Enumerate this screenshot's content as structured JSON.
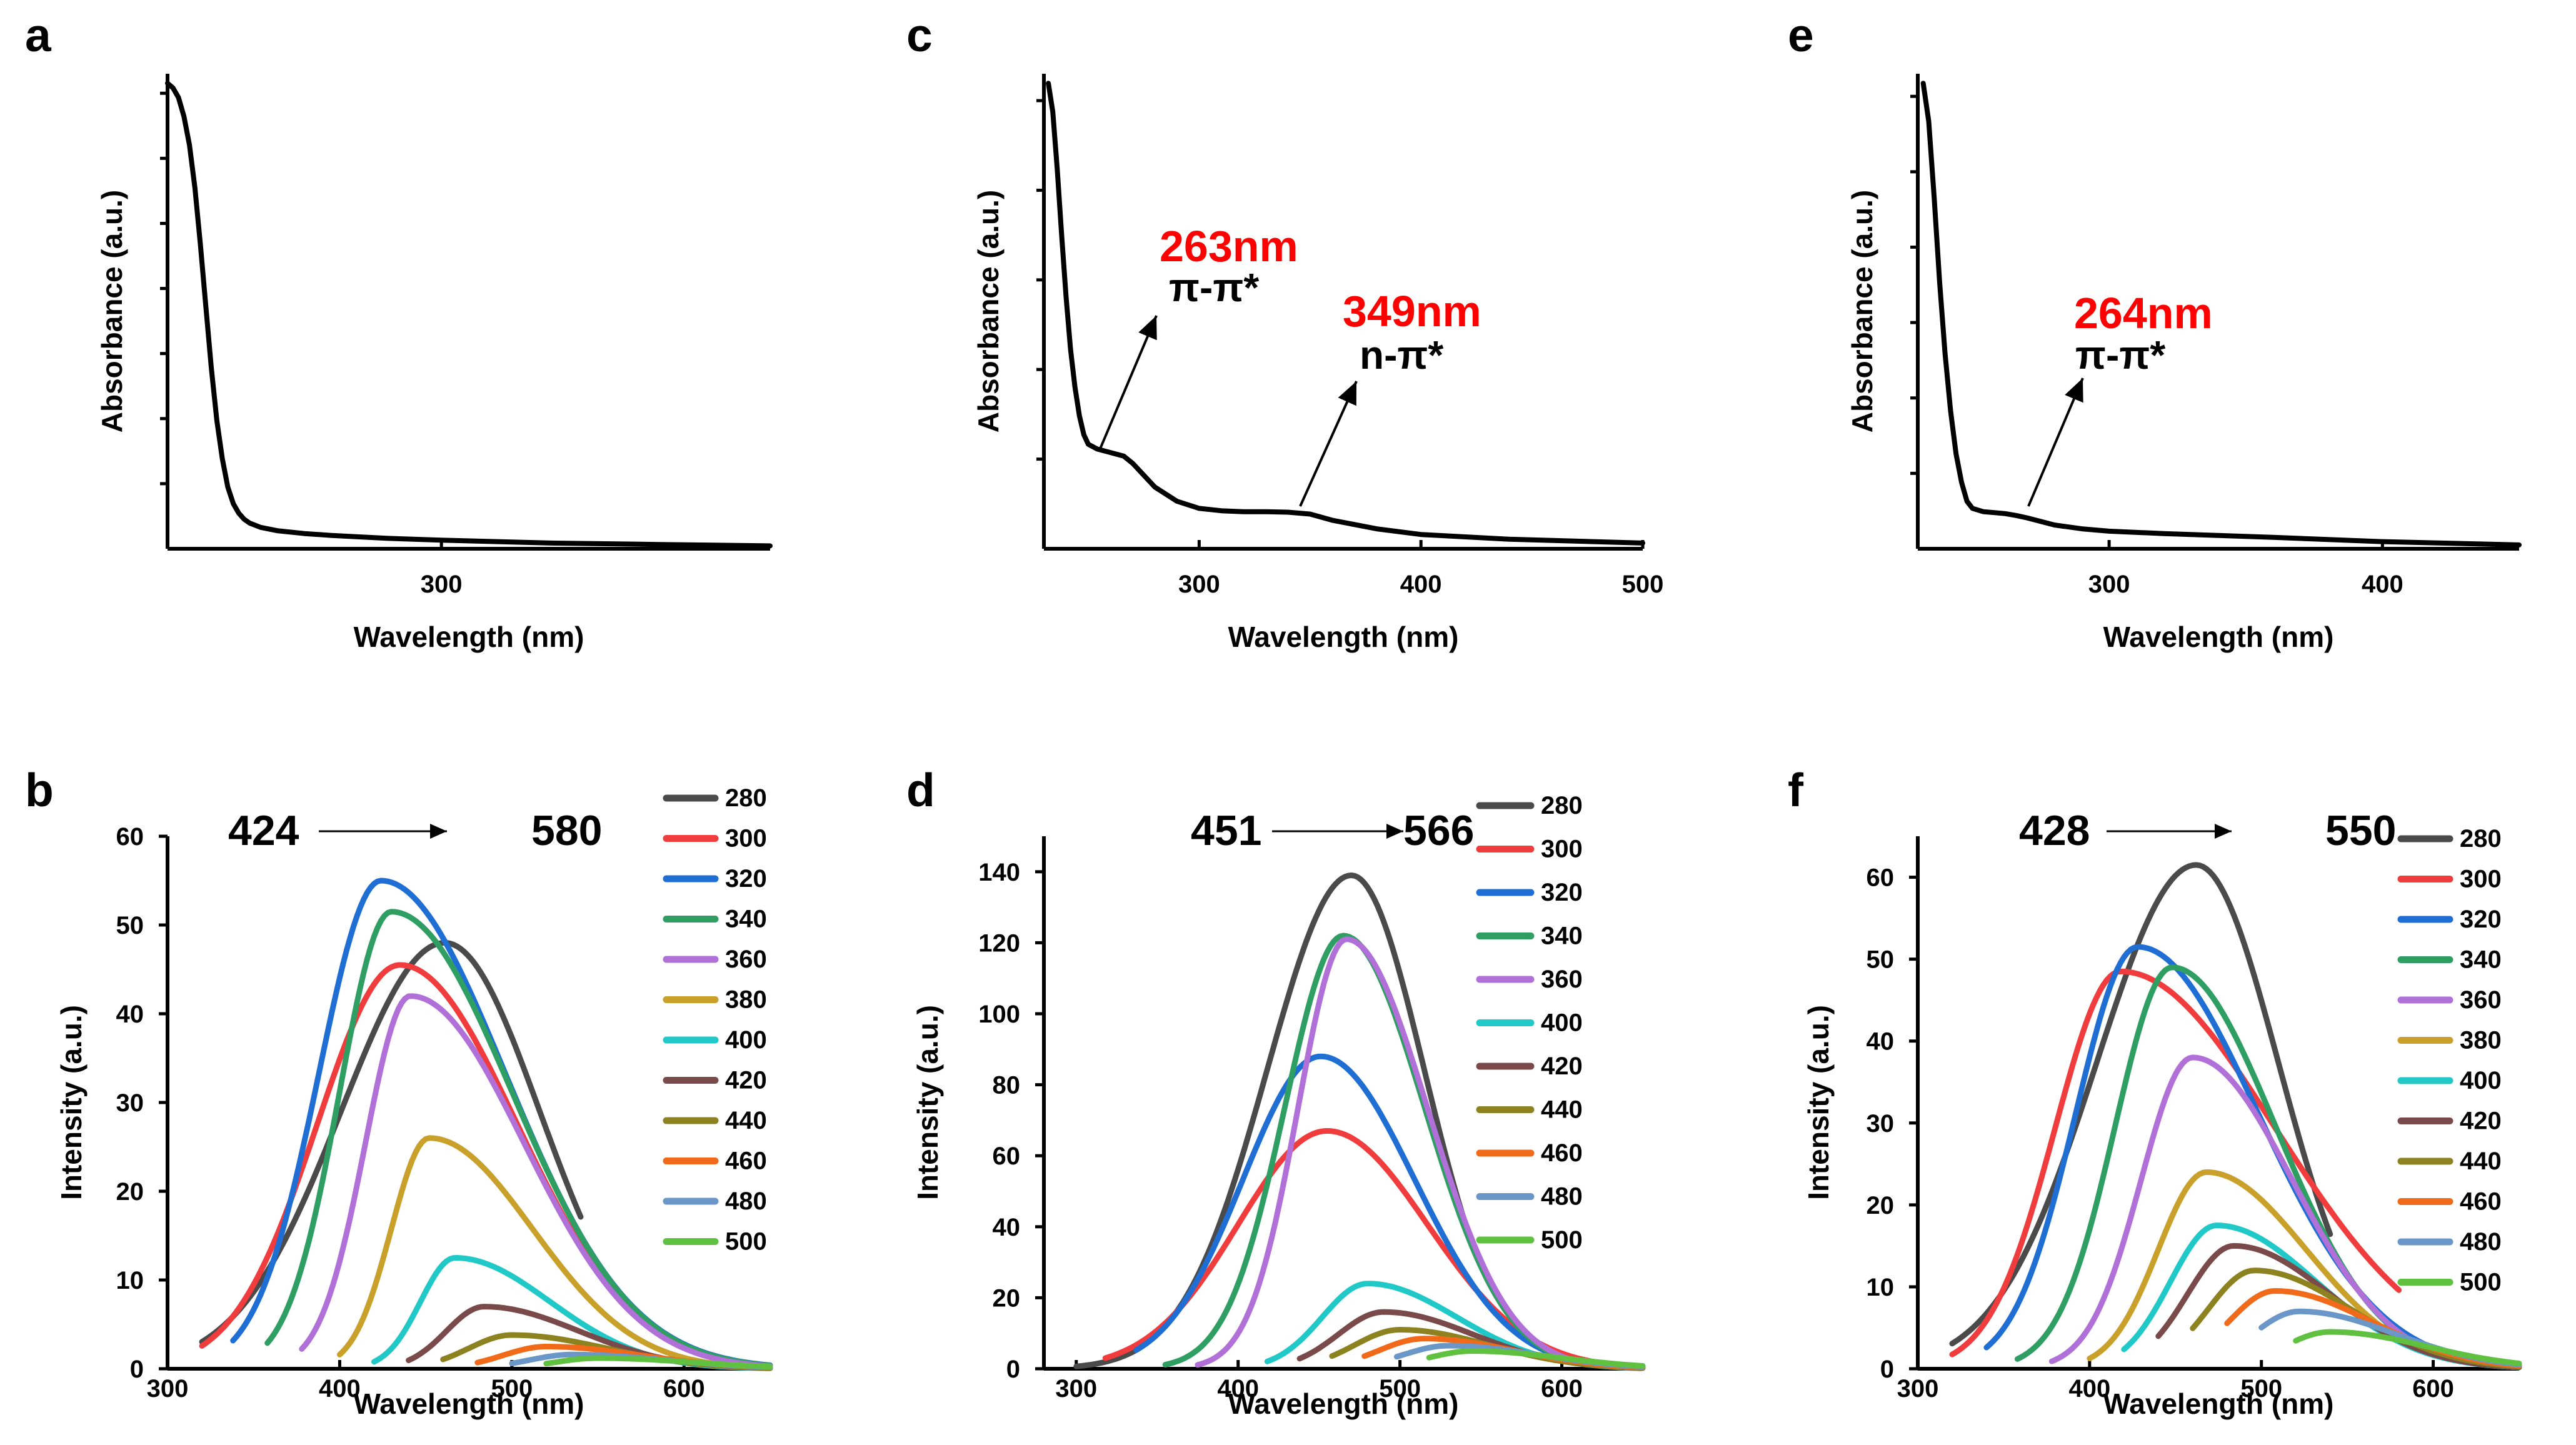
{
  "colors": {
    "280": "#4a4a4a",
    "300": "#f03c3c",
    "320": "#1f6ed4",
    "340": "#2e9e63",
    "360": "#b070d8",
    "380": "#c9a02a",
    "400": "#20c8c8",
    "420": "#7a4a4a",
    "440": "#8c8220",
    "460": "#f06a1a",
    "480": "#6a96c8",
    "500": "#60c040",
    "annotation": "#ff0000",
    "axis": "#000000"
  },
  "chart_data": [
    {
      "panel": "a",
      "type": "line",
      "xlabel": "Wavelength (nm)",
      "ylabel": "Absorbance (a.u.)",
      "xlim": [
        200,
        420
      ],
      "ylim": [
        0,
        1
      ],
      "xticks": [
        300
      ],
      "ytick_count": 7,
      "show_ytick_labels": false,
      "series": [
        {
          "name": "absorbance",
          "x": [
            200,
            202,
            204,
            206,
            208,
            210,
            212,
            214,
            216,
            218,
            220,
            222,
            224,
            226,
            228,
            230,
            234,
            240,
            250,
            260,
            280,
            300,
            340,
            380,
            420
          ],
          "y": [
            0.98,
            0.97,
            0.95,
            0.91,
            0.85,
            0.76,
            0.64,
            0.51,
            0.38,
            0.27,
            0.19,
            0.13,
            0.095,
            0.075,
            0.062,
            0.054,
            0.045,
            0.038,
            0.032,
            0.028,
            0.022,
            0.018,
            0.012,
            0.009,
            0.006
          ]
        }
      ],
      "annotations": []
    },
    {
      "panel": "c",
      "type": "line",
      "xlabel": "Wavelength (nm)",
      "ylabel": "Absorbance (a.u.)",
      "xlim": [
        230,
        500
      ],
      "ylim": [
        0,
        1
      ],
      "xticks": [
        300,
        400,
        500
      ],
      "ytick_count": 5,
      "show_ytick_labels": false,
      "series": [
        {
          "name": "absorbance",
          "x": [
            232,
            234,
            236,
            238,
            240,
            242,
            244,
            246,
            248,
            250,
            254,
            258,
            262,
            266,
            270,
            274,
            280,
            290,
            300,
            310,
            320,
            330,
            340,
            350,
            360,
            380,
            400,
            440,
            500
          ],
          "y": [
            0.98,
            0.92,
            0.8,
            0.66,
            0.53,
            0.42,
            0.34,
            0.28,
            0.24,
            0.22,
            0.21,
            0.205,
            0.2,
            0.195,
            0.18,
            0.16,
            0.13,
            0.1,
            0.085,
            0.08,
            0.078,
            0.078,
            0.077,
            0.073,
            0.06,
            0.042,
            0.03,
            0.02,
            0.012
          ]
        }
      ],
      "annotations": [
        {
          "value": "263nm",
          "label": "π-π*",
          "x": 263,
          "y": 0.2
        },
        {
          "value": "349nm",
          "label": "n-π*",
          "x": 349,
          "y": 0.077
        }
      ]
    },
    {
      "panel": "e",
      "type": "line",
      "xlabel": "Wavelength (nm)",
      "ylabel": "Absorbance (a.u.)",
      "xlim": [
        230,
        450
      ],
      "ylim": [
        0,
        1
      ],
      "xticks": [
        300,
        400
      ],
      "ytick_count": 6,
      "show_ytick_labels": false,
      "series": [
        {
          "name": "absorbance",
          "x": [
            232,
            234,
            236,
            238,
            240,
            242,
            244,
            246,
            248,
            250,
            254,
            258,
            262,
            266,
            270,
            280,
            290,
            300,
            320,
            340,
            360,
            400,
            450
          ],
          "y": [
            0.98,
            0.9,
            0.74,
            0.56,
            0.41,
            0.29,
            0.2,
            0.14,
            0.1,
            0.085,
            0.078,
            0.076,
            0.074,
            0.07,
            0.065,
            0.05,
            0.042,
            0.037,
            0.032,
            0.028,
            0.024,
            0.015,
            0.008
          ]
        }
      ],
      "annotations": [
        {
          "value": "264nm",
          "label": "π-π*",
          "x": 264,
          "y": 0.07
        }
      ]
    },
    {
      "panel": "b",
      "type": "line",
      "xlabel": "Wavelength (nm)",
      "ylabel": "Intensity (a.u.)",
      "xlim": [
        300,
        650
      ],
      "ylim": [
        0,
        60
      ],
      "xticks": [
        300,
        400,
        500,
        600
      ],
      "yticks": [
        0,
        10,
        20,
        30,
        40,
        50,
        60
      ],
      "range_from": "424",
      "range_to": "580",
      "legend": [
        "280",
        "300",
        "320",
        "340",
        "360",
        "380",
        "400",
        "420",
        "440",
        "460",
        "480",
        "500"
      ],
      "series": [
        {
          "name": "280",
          "peak": 461,
          "height": 48,
          "w1": 60,
          "w2": 55,
          "start": 320,
          "end": 540
        },
        {
          "name": "300",
          "peak": 435,
          "height": 45.5,
          "w1": 48,
          "w2": 68,
          "start": 320,
          "end": 650
        },
        {
          "name": "320",
          "peak": 424,
          "height": 55,
          "w1": 36,
          "w2": 72,
          "start": 338,
          "end": 650
        },
        {
          "name": "340",
          "peak": 430,
          "height": 51.5,
          "w1": 30,
          "w2": 70,
          "start": 358,
          "end": 650
        },
        {
          "name": "360",
          "peak": 441,
          "height": 42,
          "w1": 26,
          "w2": 66,
          "start": 378,
          "end": 650
        },
        {
          "name": "380",
          "peak": 452,
          "height": 26,
          "w1": 22,
          "w2": 60,
          "start": 400,
          "end": 650
        },
        {
          "name": "400",
          "peak": 467,
          "height": 12.5,
          "w1": 20,
          "w2": 55,
          "start": 420,
          "end": 650
        },
        {
          "name": "420",
          "peak": 484,
          "height": 7,
          "w1": 22,
          "w2": 55,
          "start": 440,
          "end": 650
        },
        {
          "name": "440",
          "peak": 500,
          "height": 3.8,
          "w1": 25,
          "w2": 55,
          "start": 460,
          "end": 650
        },
        {
          "name": "460",
          "peak": 520,
          "height": 2.5,
          "w1": 25,
          "w2": 55,
          "start": 480,
          "end": 650
        },
        {
          "name": "480",
          "peak": 535,
          "height": 1.6,
          "w1": 25,
          "w2": 55,
          "start": 500,
          "end": 650
        },
        {
          "name": "500",
          "peak": 550,
          "height": 1.2,
          "w1": 25,
          "w2": 55,
          "start": 520,
          "end": 650
        }
      ]
    },
    {
      "panel": "d",
      "type": "line",
      "xlabel": "Wavelength (nm)",
      "ylabel": "Intensity (a.u.)",
      "xlim": [
        280,
        650
      ],
      "ylim": [
        0,
        150
      ],
      "xticks": [
        300,
        400,
        500,
        600
      ],
      "yticks": [
        0,
        20,
        40,
        60,
        80,
        100,
        120,
        140
      ],
      "range_from": "451",
      "range_to": "566",
      "legend": [
        "280",
        "300",
        "320",
        "340",
        "360",
        "400",
        "420",
        "440",
        "460",
        "480",
        "500"
      ],
      "series": [
        {
          "name": "280",
          "peak": 470,
          "height": 139,
          "w1": 52,
          "w2": 45,
          "start": 300,
          "end": 540
        },
        {
          "name": "300",
          "peak": 455,
          "height": 67,
          "w1": 55,
          "w2": 62,
          "start": 318,
          "end": 650
        },
        {
          "name": "320",
          "peak": 451,
          "height": 88,
          "w1": 48,
          "w2": 58,
          "start": 337,
          "end": 650
        },
        {
          "name": "340",
          "peak": 465,
          "height": 122,
          "w1": 36,
          "w2": 50,
          "start": 355,
          "end": 650
        },
        {
          "name": "360",
          "peak": 467,
          "height": 121,
          "w1": 30,
          "w2": 50,
          "start": 375,
          "end": 650
        },
        {
          "name": "400",
          "peak": 480,
          "height": 24,
          "w1": 28,
          "w2": 55,
          "start": 418,
          "end": 650
        },
        {
          "name": "420",
          "peak": 490,
          "height": 16,
          "w1": 28,
          "w2": 55,
          "start": 438,
          "end": 650
        },
        {
          "name": "440",
          "peak": 500,
          "height": 11,
          "w1": 28,
          "w2": 55,
          "start": 458,
          "end": 650
        },
        {
          "name": "460",
          "peak": 515,
          "height": 8.5,
          "w1": 28,
          "w2": 55,
          "start": 478,
          "end": 650
        },
        {
          "name": "480",
          "peak": 530,
          "height": 6.5,
          "w1": 28,
          "w2": 55,
          "start": 498,
          "end": 650
        },
        {
          "name": "500",
          "peak": 545,
          "height": 5,
          "w1": 28,
          "w2": 55,
          "start": 518,
          "end": 650
        }
      ]
    },
    {
      "panel": "f",
      "type": "line",
      "xlabel": "Wavelength (nm)",
      "ylabel": "Intensity (a.u.)",
      "xlim": [
        300,
        650
      ],
      "ylim": [
        0,
        65
      ],
      "xticks": [
        300,
        400,
        500,
        600
      ],
      "yticks": [
        0,
        10,
        20,
        30,
        40,
        50,
        60
      ],
      "range_from": "428",
      "range_to": "550",
      "legend": [
        "280",
        "300",
        "320",
        "340",
        "360",
        "380",
        "400",
        "420",
        "440",
        "460",
        "480",
        "500"
      ],
      "series": [
        {
          "name": "280",
          "peak": 462,
          "height": 61.5,
          "w1": 58,
          "w2": 48,
          "start": 320,
          "end": 540
        },
        {
          "name": "300",
          "peak": 418,
          "height": 48.5,
          "w1": 38,
          "w2": 90,
          "start": 320,
          "end": 580
        },
        {
          "name": "320",
          "peak": 428,
          "height": 51.5,
          "w1": 36,
          "w2": 70,
          "start": 340,
          "end": 650
        },
        {
          "name": "340",
          "peak": 448,
          "height": 49,
          "w1": 33,
          "w2": 60,
          "start": 358,
          "end": 650
        },
        {
          "name": "360",
          "peak": 460,
          "height": 38,
          "w1": 30,
          "w2": 58,
          "start": 378,
          "end": 650
        },
        {
          "name": "380",
          "peak": 468,
          "height": 24,
          "w1": 28,
          "w2": 58,
          "start": 400,
          "end": 650
        },
        {
          "name": "400",
          "peak": 474,
          "height": 17.5,
          "w1": 27,
          "w2": 58,
          "start": 420,
          "end": 650
        },
        {
          "name": "420",
          "peak": 484,
          "height": 15,
          "w1": 27,
          "w2": 56,
          "start": 440,
          "end": 650
        },
        {
          "name": "440",
          "peak": 496,
          "height": 12,
          "w1": 27,
          "w2": 56,
          "start": 460,
          "end": 650
        },
        {
          "name": "460",
          "peak": 508,
          "height": 9.5,
          "w1": 27,
          "w2": 56,
          "start": 480,
          "end": 650
        },
        {
          "name": "480",
          "peak": 522,
          "height": 7,
          "w1": 27,
          "w2": 56,
          "start": 500,
          "end": 650
        },
        {
          "name": "500",
          "peak": 540,
          "height": 4.5,
          "w1": 27,
          "w2": 56,
          "start": 520,
          "end": 650
        }
      ]
    }
  ]
}
